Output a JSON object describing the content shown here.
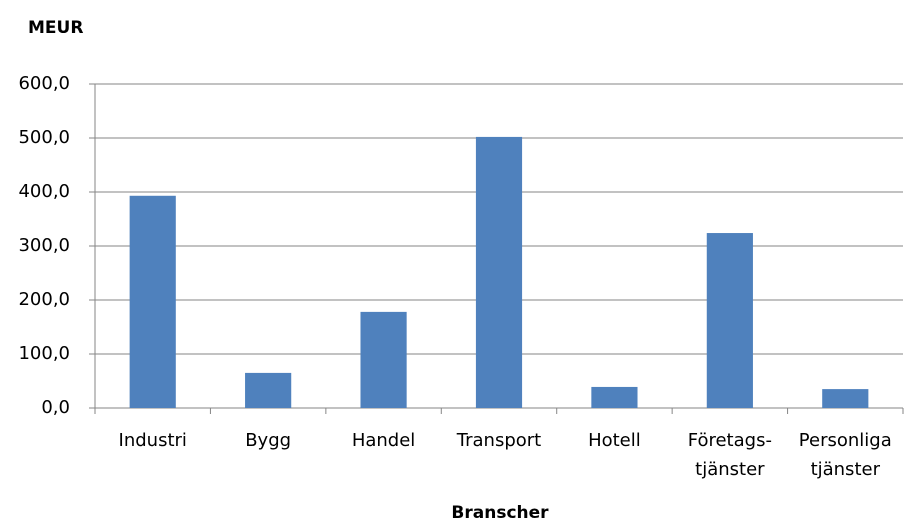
{
  "chart_data": {
    "type": "bar",
    "y_label": "MEUR",
    "x_label": "Branscher",
    "categories": [
      "Industri",
      "Bygg",
      "Handel",
      "Transport",
      "Hotell",
      "Företags-\ntjänster",
      "Personliga\ntjänster"
    ],
    "values": [
      393,
      65,
      178,
      502,
      39,
      324,
      35
    ],
    "color": "#4f81bd",
    "ylim": [
      0,
      600
    ],
    "yticks": [
      {
        "value": 0,
        "label": "0,0"
      },
      {
        "value": 100,
        "label": "100,0"
      },
      {
        "value": 200,
        "label": "200,0"
      },
      {
        "value": 300,
        "label": "300,0"
      },
      {
        "value": 400,
        "label": "400,0"
      },
      {
        "value": 500,
        "label": "500,0"
      },
      {
        "value": 600,
        "label": "600,0"
      }
    ],
    "grid": true
  }
}
